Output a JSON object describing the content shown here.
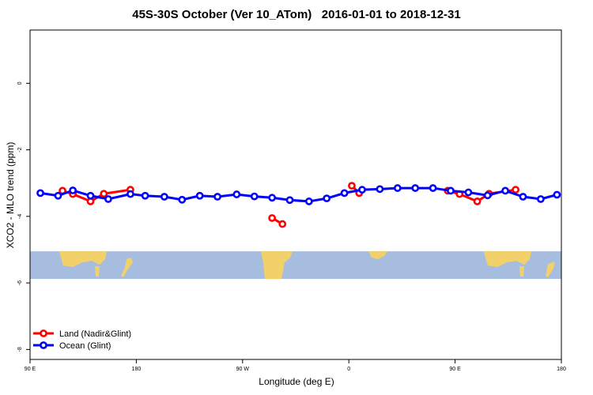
{
  "title": "45S-30S October (Ver 10_ATom)   2016-01-01 to 2018-12-31",
  "chart_data": {
    "type": "line",
    "xlabel": "Longitude (deg E)",
    "ylabel": "XCO2 - MLO trend (ppm)",
    "xlim": [
      90,
      450
    ],
    "ylim": [
      -8.3,
      1.6
    ],
    "x_ticks": [
      90,
      162,
      234,
      306,
      378,
      450
    ],
    "x_tick_labels": [
      "90 E",
      "180",
      "90 W",
      "0",
      "90 E",
      "180"
    ],
    "y_ticks": [
      0,
      -2,
      -4,
      -6,
      -8
    ],
    "y_tick_labels": [
      "0",
      "-2",
      "-4",
      "-6",
      "-8"
    ],
    "legend_position": "bottom-left",
    "grid": false,
    "map_band_y": [
      -5.05,
      -5.88
    ],
    "series": [
      {
        "name": "Land (Nadir&Glint)",
        "color": "#ff0000",
        "segments": [
          [
            [
              112,
              -3.23
            ],
            [
              119,
              -3.33
            ],
            [
              131,
              -3.55
            ],
            [
              140,
              -3.32
            ],
            [
              158,
              -3.2
            ]
          ],
          [
            [
              254,
              -4.05
            ],
            [
              261,
              -4.23
            ]
          ],
          [
            [
              308,
              -3.08
            ],
            [
              313,
              -3.3
            ]
          ],
          [
            [
              373,
              -3.23
            ],
            [
              381,
              -3.33
            ],
            [
              393,
              -3.55
            ],
            [
              401,
              -3.32
            ],
            [
              419,
              -3.2
            ]
          ]
        ]
      },
      {
        "name": "Ocean (Glint)",
        "color": "#0000ff",
        "segments": [
          [
            [
              97,
              -3.3
            ],
            [
              109,
              -3.38
            ],
            [
              119,
              -3.22
            ],
            [
              131,
              -3.38
            ],
            [
              143,
              -3.48
            ],
            [
              158,
              -3.33
            ],
            [
              168,
              -3.38
            ],
            [
              181,
              -3.41
            ],
            [
              193,
              -3.5
            ],
            [
              205,
              -3.38
            ],
            [
              217,
              -3.41
            ],
            [
              230,
              -3.34
            ],
            [
              242,
              -3.4
            ],
            [
              254,
              -3.44
            ],
            [
              266,
              -3.51
            ],
            [
              279,
              -3.55
            ],
            [
              291,
              -3.46
            ],
            [
              303,
              -3.3
            ],
            [
              315,
              -3.2
            ],
            [
              327,
              -3.18
            ],
            [
              339,
              -3.15
            ],
            [
              351,
              -3.15
            ],
            [
              363,
              -3.15
            ],
            [
              375,
              -3.23
            ],
            [
              387,
              -3.28
            ],
            [
              400,
              -3.37
            ],
            [
              412,
              -3.23
            ],
            [
              424,
              -3.41
            ],
            [
              436,
              -3.48
            ],
            [
              447,
              -3.35
            ]
          ]
        ]
      }
    ]
  }
}
